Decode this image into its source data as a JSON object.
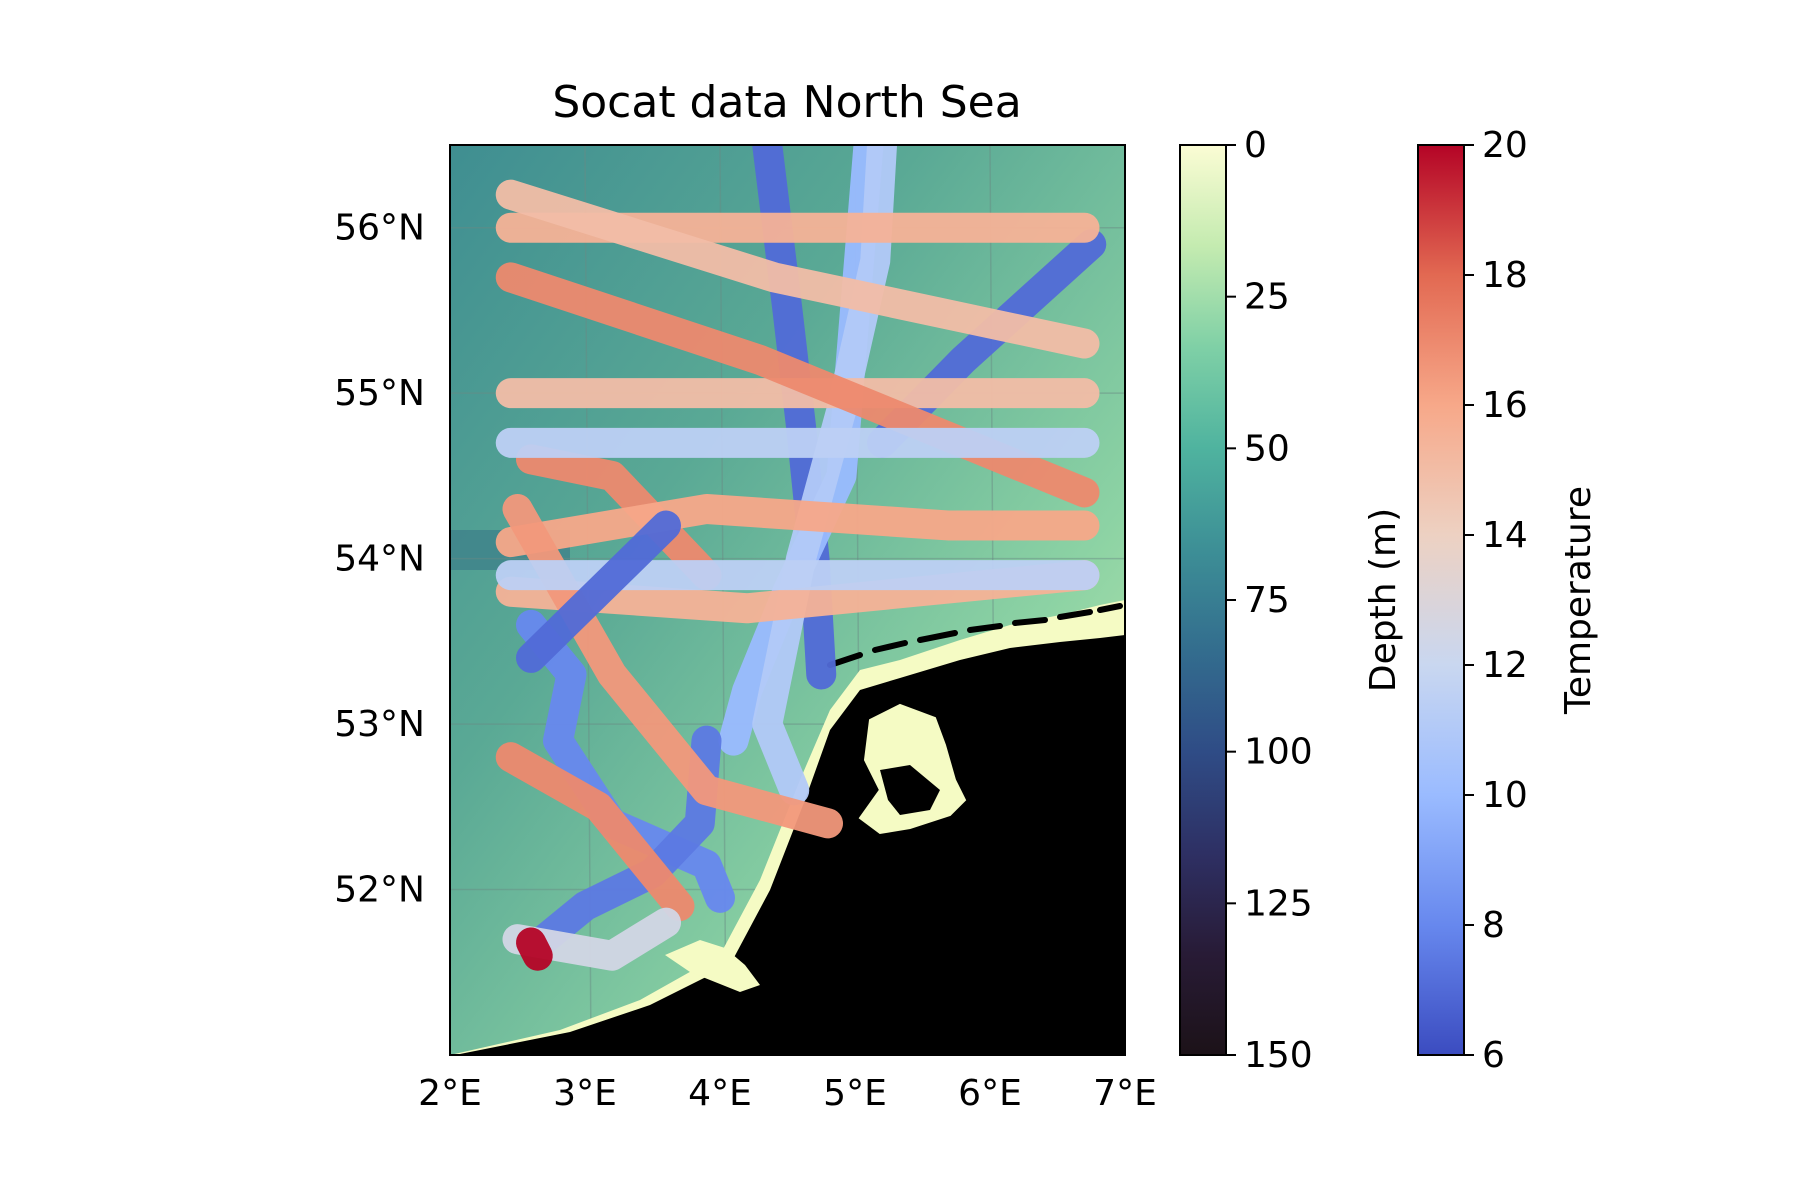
{
  "title": "Socat data North Sea",
  "x_ticks": [
    "2°E",
    "3°E",
    "4°E",
    "5°E",
    "6°E",
    "7°E"
  ],
  "y_ticks": [
    "52°N",
    "53°N",
    "54°N",
    "55°N",
    "56°N"
  ],
  "depth_colorbar": {
    "label": "Depth (m)",
    "ticks": [
      "0",
      "25",
      "50",
      "75",
      "100",
      "125",
      "150"
    ],
    "range": [
      0,
      150
    ],
    "colors": [
      "#fbfcd4",
      "#c4ebb0",
      "#7fd0a6",
      "#4fb39f",
      "#3d8f96",
      "#336d8e",
      "#2f4c86",
      "#2e3064",
      "#281b36",
      "#1c1218"
    ]
  },
  "temperature_colorbar": {
    "label": "Temperature",
    "ticks": [
      "6",
      "8",
      "10",
      "12",
      "14",
      "16",
      "18",
      "20"
    ],
    "range": [
      6,
      20
    ],
    "colors": [
      "#3b4cc0",
      "#6788ee",
      "#9abbff",
      "#c9d7f0",
      "#edd1c2",
      "#f7a889",
      "#e26952",
      "#b40426"
    ]
  },
  "map_extent": {
    "lon": [
      2,
      7
    ],
    "lat": [
      51.0,
      56.5
    ]
  },
  "land_color": "#000000",
  "coast_color": "#f5fbc4",
  "chart_data": {
    "type": "scatter",
    "title": "Socat data North Sea",
    "xlabel": "",
    "ylabel": "",
    "xlim": [
      2,
      7
    ],
    "ylim": [
      51.0,
      56.5
    ],
    "color_variable": "Temperature",
    "color_range": [
      6,
      20
    ],
    "tracks": [
      {
        "lon": [
          4.35,
          4.5,
          4.6,
          4.7,
          4.75
        ],
        "lat": [
          56.5,
          55.5,
          54.8,
          54.0,
          53.3
        ],
        "temp": [
          7
        ]
      },
      {
        "lon": [
          5.1,
          5.0,
          4.9,
          4.5,
          4.2,
          4.1
        ],
        "lat": [
          56.5,
          55.5,
          54.5,
          53.8,
          53.2,
          52.9
        ],
        "temp": [
          10
        ]
      },
      {
        "lon": [
          5.2,
          5.15,
          4.9,
          4.6,
          4.35,
          4.55
        ],
        "lat": [
          56.5,
          55.8,
          54.9,
          54.0,
          53.0,
          52.6
        ],
        "temp": [
          11
        ]
      },
      {
        "lon": [
          6.75,
          5.8,
          5.2
        ],
        "lat": [
          55.9,
          55.2,
          54.7
        ],
        "temp": [
          7
        ]
      },
      {
        "lon": [
          2.6,
          2.9,
          2.8,
          3.2,
          3.9,
          4.0
        ],
        "lat": [
          53.6,
          53.3,
          52.9,
          52.4,
          52.15,
          51.95
        ],
        "temp": [
          8
        ]
      },
      {
        "lon": [
          3.9,
          3.85,
          3.5,
          3.0,
          2.7
        ],
        "lat": [
          52.9,
          52.4,
          52.1,
          51.9,
          51.7
        ],
        "temp": [
          7.5
        ]
      },
      {
        "lon": [
          2.45,
          6.7
        ],
        "lat": [
          55.0,
          55.0
        ],
        "temp": [
          15
        ]
      },
      {
        "lon": [
          2.45,
          6.7
        ],
        "lat": [
          56.0,
          56.0
        ],
        "temp": [
          15.5
        ]
      },
      {
        "lon": [
          2.45,
          4.4,
          6.7
        ],
        "lat": [
          56.2,
          55.7,
          55.3
        ],
        "temp": [
          15
        ]
      },
      {
        "lon": [
          2.45,
          4.3,
          5.5,
          6.7
        ],
        "lat": [
          55.7,
          55.2,
          54.8,
          54.4
        ],
        "temp": [
          17
        ]
      },
      {
        "lon": [
          2.6,
          3.2,
          3.9
        ],
        "lat": [
          54.6,
          54.5,
          53.9
        ],
        "temp": [
          17
        ]
      },
      {
        "lon": [
          2.45,
          3.9,
          5.7,
          6.7
        ],
        "lat": [
          54.1,
          54.3,
          54.2,
          54.2
        ],
        "temp": [
          16
        ]
      },
      {
        "lon": [
          2.45,
          4.2,
          6.7
        ],
        "lat": [
          53.8,
          53.7,
          53.9
        ],
        "temp": [
          15.5
        ]
      },
      {
        "lon": [
          2.5,
          3.2,
          3.9,
          4.8
        ],
        "lat": [
          54.3,
          53.3,
          52.6,
          52.4
        ],
        "temp": [
          16.5
        ]
      },
      {
        "lon": [
          2.45,
          3.1,
          3.7
        ],
        "lat": [
          52.8,
          52.5,
          51.9
        ],
        "temp": [
          17
        ]
      },
      {
        "lon": [
          2.5,
          3.2,
          3.6
        ],
        "lat": [
          51.7,
          51.6,
          51.8
        ],
        "temp": [
          12.5
        ]
      },
      {
        "lon": [
          2.6,
          2.65
        ],
        "lat": [
          51.68,
          51.6
        ],
        "temp": [
          20
        ]
      },
      {
        "lon": [
          2.45,
          6.7
        ],
        "lat": [
          54.7,
          54.7
        ],
        "temp": [
          11.5
        ]
      },
      {
        "lon": [
          2.45,
          6.7
        ],
        "lat": [
          53.9,
          53.9
        ],
        "temp": [
          11.5
        ]
      },
      {
        "lon": [
          2.6,
          3.6
        ],
        "lat": [
          53.4,
          54.2
        ],
        "temp": [
          7
        ]
      }
    ]
  }
}
